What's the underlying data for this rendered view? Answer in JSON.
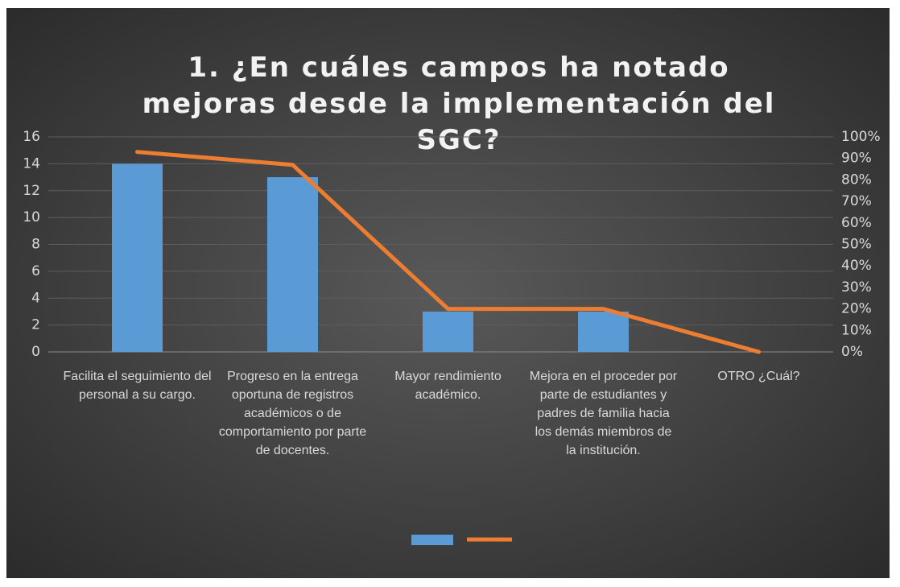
{
  "chart_data": {
    "type": "bar_line",
    "title": "1. ¿En cuáles campos ha notado mejoras desde la implementación del SGC?",
    "categories": [
      "Facilita el seguimiento del personal a su cargo.",
      "Progreso en la entrega oportuna de registros académicos o de comportamiento por parte de docentes.",
      "Mayor rendimiento académico.",
      "Mejora en el proceder por parte de estudiantes y padres de familia hacia los demás miembros de la institución.",
      "OTRO ¿Cuál?"
    ],
    "series": [
      {
        "type": "bar",
        "color": "#5b9bd5",
        "values": [
          14,
          13,
          3,
          3,
          0
        ]
      },
      {
        "type": "line",
        "color": "#ed7d31",
        "axis": "y2",
        "values": [
          93,
          87,
          20,
          20,
          0
        ]
      }
    ],
    "ylim": [
      0,
      16
    ],
    "yticks": [
      0,
      2,
      4,
      6,
      8,
      10,
      12,
      14,
      16
    ],
    "y2lim": [
      0,
      100
    ],
    "y2ticks": [
      {
        "value": 0,
        "label": "0%"
      },
      {
        "value": 10,
        "label": "10%"
      },
      {
        "value": 20,
        "label": "20%"
      },
      {
        "value": 30,
        "label": "30%"
      },
      {
        "value": 40,
        "label": "40%"
      },
      {
        "value": 50,
        "label": "50%"
      },
      {
        "value": 60,
        "label": "60%"
      },
      {
        "value": 70,
        "label": "70%"
      },
      {
        "value": 80,
        "label": "80%"
      },
      {
        "value": 90,
        "label": "90%"
      },
      {
        "value": 100,
        "label": "100%"
      }
    ],
    "grid": true,
    "legend": "bottom"
  }
}
